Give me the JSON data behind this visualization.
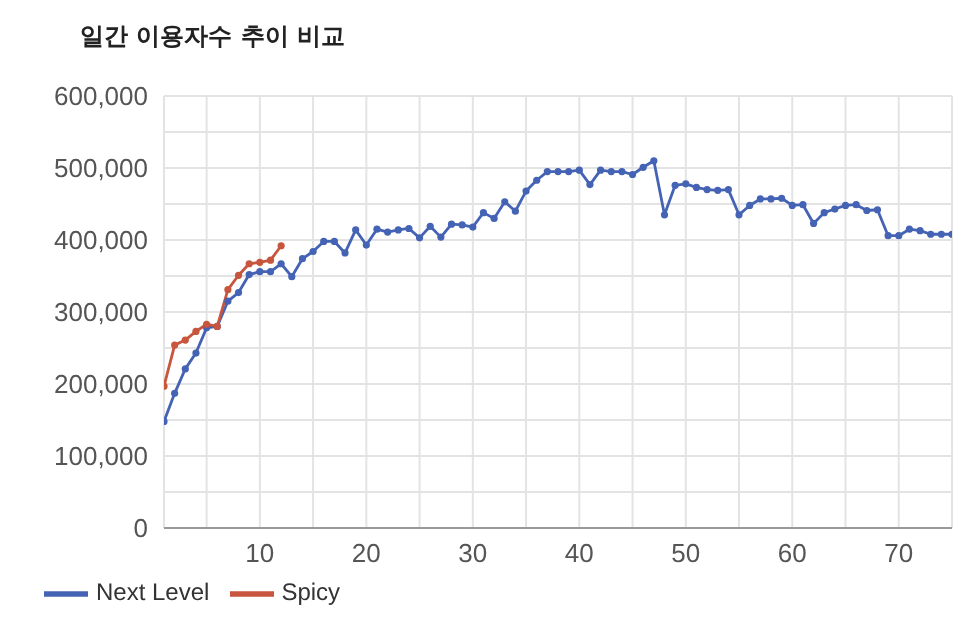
{
  "chart_data": {
    "type": "line",
    "title": "일간 이용자수 추이 비교",
    "x": [
      1,
      2,
      3,
      4,
      5,
      6,
      7,
      8,
      9,
      10,
      11,
      12,
      13,
      14,
      15,
      16,
      17,
      18,
      19,
      20,
      21,
      22,
      23,
      24,
      25,
      26,
      27,
      28,
      29,
      30,
      31,
      32,
      33,
      34,
      35,
      36,
      37,
      38,
      39,
      40,
      41,
      42,
      43,
      44,
      45,
      46,
      47,
      48,
      49,
      50,
      51,
      52,
      53,
      54,
      55,
      56,
      57,
      58,
      59,
      60,
      61,
      62,
      63,
      64,
      65,
      66,
      67,
      68,
      69,
      70,
      71,
      72,
      73,
      74,
      75
    ],
    "series": [
      {
        "name": "Next Level",
        "color": "#4563b5",
        "values": [
          148000,
          187000,
          221000,
          243000,
          278000,
          280000,
          315000,
          327000,
          352000,
          356000,
          356000,
          367000,
          349000,
          374000,
          384000,
          398000,
          398000,
          382000,
          414000,
          393000,
          415000,
          411000,
          414000,
          416000,
          403000,
          419000,
          404000,
          422000,
          421000,
          418000,
          438000,
          430000,
          453000,
          440000,
          468000,
          483000,
          495000,
          495000,
          495000,
          497000,
          477000,
          497000,
          495000,
          495000,
          491000,
          501000,
          510000,
          435000,
          476000,
          478000,
          473000,
          470000,
          469000,
          470000,
          435000,
          448000,
          457000,
          457000,
          458000,
          448000,
          449000,
          423000,
          438000,
          443000,
          448000,
          449000,
          441000,
          442000,
          406000,
          406000,
          415000,
          413000,
          408000,
          408000,
          408000
        ]
      },
      {
        "name": "Spicy",
        "color": "#c8553d",
        "x": [
          1,
          2,
          3,
          4,
          5,
          6,
          7,
          8,
          9,
          10,
          11,
          12
        ],
        "values": [
          197000,
          254000,
          261000,
          273000,
          283000,
          280000,
          331000,
          351000,
          367000,
          369000,
          372000,
          392000
        ]
      }
    ],
    "xlim": [
      1,
      75
    ],
    "xticks": [
      {
        "value": 5,
        "label": null
      },
      10,
      {
        "value": 15,
        "label": null
      },
      20,
      {
        "value": 25,
        "label": null
      },
      30,
      {
        "value": 35,
        "label": null
      },
      40,
      {
        "value": 45,
        "label": null
      },
      50,
      {
        "value": 55,
        "label": null
      },
      60,
      {
        "value": 65,
        "label": null
      },
      70
    ],
    "ylim": [
      0,
      600000
    ],
    "yticks": [
      {
        "value": 0,
        "label": "0"
      },
      {
        "value": 50000,
        "label": null
      },
      {
        "value": 100000,
        "label": "100,000"
      },
      {
        "value": 150000,
        "label": null
      },
      {
        "value": 200000,
        "label": "200,000"
      },
      {
        "value": 250000,
        "label": null
      },
      {
        "value": 300000,
        "label": "300,000"
      },
      {
        "value": 350000,
        "label": null
      },
      {
        "value": 400000,
        "label": "400,000"
      },
      {
        "value": 450000,
        "label": null
      },
      {
        "value": 500000,
        "label": "500,000"
      },
      {
        "value": 550000,
        "label": null
      },
      {
        "value": 600000,
        "label": "600,000"
      }
    ],
    "grid": true,
    "legend": "bottom left",
    "marker": "circle",
    "line_style": "solid"
  }
}
